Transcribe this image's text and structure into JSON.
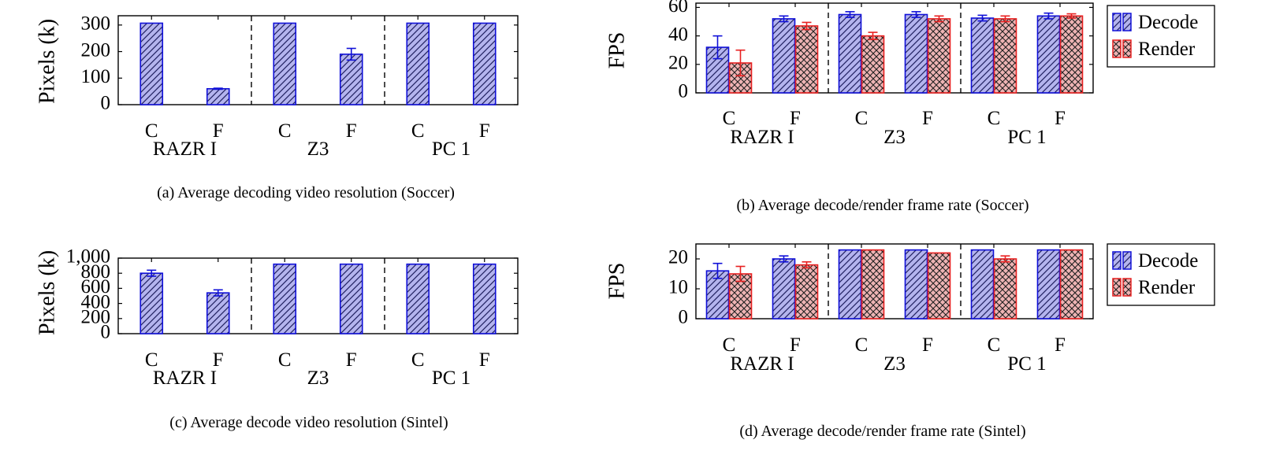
{
  "colors": {
    "decode_stroke": "#1010d8",
    "decode_fill": "#b4b4ee",
    "render_stroke": "#e82020",
    "render_fill": "#eeb4b4",
    "hatch": "#202060"
  },
  "chart_data": [
    {
      "id": "a",
      "type": "bar",
      "caption": "(a) Average decoding video resolution (Soccer)",
      "ylabel": "Pixels (k)",
      "ylim": [
        0,
        335
      ],
      "yticks": [
        0,
        100,
        200,
        300
      ],
      "ytick_labels": [
        "0",
        "100",
        "200",
        "300"
      ],
      "groups": [
        "RAZR I",
        "Z3",
        "PC 1"
      ],
      "categories": [
        "C",
        "F",
        "C",
        "F",
        "C",
        "F"
      ],
      "series": [
        {
          "name": "Pixels",
          "values": [
            307,
            60,
            307,
            190,
            307,
            307
          ],
          "errors": [
            0,
            2,
            0,
            22,
            0,
            0
          ]
        }
      ]
    },
    {
      "id": "b",
      "type": "bar",
      "caption": "(b) Average decode/render frame rate (Soccer)",
      "ylabel": "FPS",
      "ylim": [
        0,
        63
      ],
      "yticks": [
        0,
        20,
        40,
        60
      ],
      "ytick_labels": [
        "0",
        "20",
        "40",
        "60"
      ],
      "groups": [
        "RAZR I",
        "Z3",
        "PC 1"
      ],
      "categories": [
        "C",
        "F",
        "C",
        "F",
        "C",
        "F"
      ],
      "legend": [
        "Decode",
        "Render"
      ],
      "series": [
        {
          "name": "Decode",
          "values": [
            32,
            52,
            55,
            55,
            52.5,
            54
          ],
          "errors": [
            8,
            2,
            2,
            2,
            2,
            2
          ]
        },
        {
          "name": "Render",
          "values": [
            21,
            47,
            40,
            52,
            52,
            54
          ],
          "errors": [
            9,
            2.5,
            2.5,
            2,
            2,
            1.5
          ]
        }
      ]
    },
    {
      "id": "c",
      "type": "bar",
      "caption": "(c) Average decode video resolution (Sintel)",
      "ylabel": "Pixels (k)",
      "ylim": [
        0,
        1000
      ],
      "yticks": [
        0,
        200,
        400,
        600,
        800,
        1000
      ],
      "ytick_labels": [
        "0",
        "200",
        "400",
        "600",
        "800",
        "1,000"
      ],
      "groups": [
        "RAZR I",
        "Z3",
        "PC 1"
      ],
      "categories": [
        "C",
        "F",
        "C",
        "F",
        "C",
        "F"
      ],
      "series": [
        {
          "name": "Pixels",
          "values": [
            800,
            540,
            920,
            920,
            920,
            920
          ],
          "errors": [
            40,
            40,
            0,
            0,
            0,
            0
          ]
        }
      ]
    },
    {
      "id": "d",
      "type": "bar",
      "caption": "(d) Average decode/render frame rate (Sintel)",
      "ylabel": "FPS",
      "ylim": [
        0,
        25
      ],
      "yticks": [
        0,
        10,
        20
      ],
      "ytick_labels": [
        "0",
        "10",
        "20"
      ],
      "groups": [
        "RAZR I",
        "Z3",
        "PC 1"
      ],
      "categories": [
        "C",
        "F",
        "C",
        "F",
        "C",
        "F"
      ],
      "legend": [
        "Decode",
        "Render"
      ],
      "series": [
        {
          "name": "Decode",
          "values": [
            16,
            20,
            23,
            23,
            23,
            23
          ],
          "errors": [
            2.5,
            1,
            0,
            0,
            0,
            0
          ]
        },
        {
          "name": "Render",
          "values": [
            15,
            18,
            23,
            22,
            20,
            23
          ],
          "errors": [
            2.5,
            1,
            0,
            0,
            1,
            0
          ]
        }
      ]
    }
  ]
}
